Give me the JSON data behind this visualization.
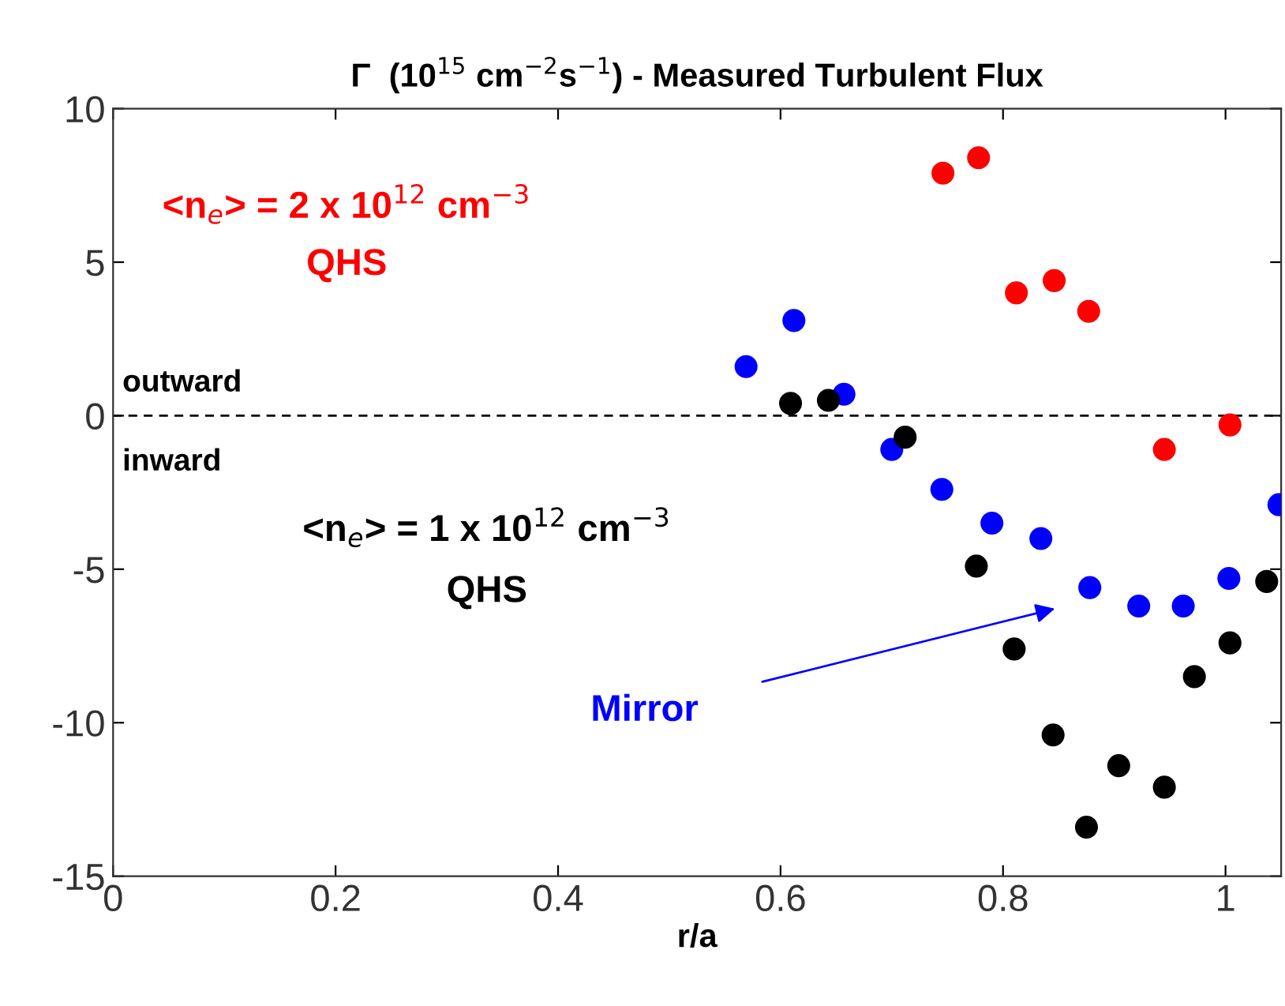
{
  "chart_data": {
    "type": "scatter",
    "title": "Γ  (10$^{15}$ cm$^{−2}$s$^{−1}$) - Measured Turbulent Flux",
    "xlabel": "r/a",
    "xlim": [
      0,
      1.05
    ],
    "xticks": [
      0,
      0.2,
      0.4,
      0.6,
      0.8,
      1
    ],
    "ylim": [
      -15,
      10
    ],
    "yticks": [
      -15,
      -10,
      -5,
      0,
      5,
      10
    ],
    "grid": false,
    "marker": "circle",
    "series": [
      {
        "color": "#ff0000",
        "x": [
          0.746,
          0.778,
          0.812,
          0.846,
          0.877,
          0.945,
          1.004
        ],
        "values": [
          7.9,
          8.4,
          4.0,
          4.4,
          3.4,
          -1.1,
          -0.3
        ]
      },
      {
        "color": "#0000ff",
        "x": [
          0.569,
          0.612,
          0.657,
          0.7,
          0.745,
          0.79,
          0.834,
          0.878,
          0.922,
          0.962,
          1.003,
          1.048
        ],
        "values": [
          1.6,
          3.1,
          0.7,
          -1.1,
          -2.4,
          -3.5,
          -4.0,
          -5.6,
          -6.2,
          -6.2,
          -5.3,
          -2.9
        ]
      },
      {
        "color": "#000000",
        "x": [
          0.609,
          0.643,
          0.712,
          0.776,
          0.81,
          0.845,
          0.875,
          0.904,
          0.945,
          0.972,
          1.004,
          1.037
        ],
        "values": [
          0.4,
          0.5,
          -0.7,
          -4.9,
          -7.6,
          -10.4,
          -13.4,
          -11.4,
          -12.1,
          -8.5,
          -7.4,
          -5.4
        ]
      }
    ],
    "ref_lines": [
      {
        "axis": "y",
        "value": 0,
        "color": "#000000",
        "line_style": "dashed"
      }
    ],
    "annotations": [
      "<n$_{e}$> = 2 x 10$^{12}$ cm$^{−3}$",
      "QHS",
      "outward",
      "inward",
      "<n$_{e}$> = 1 x 10$^{12}$ cm$^{−3}$",
      "QHS",
      "Mirror"
    ]
  }
}
